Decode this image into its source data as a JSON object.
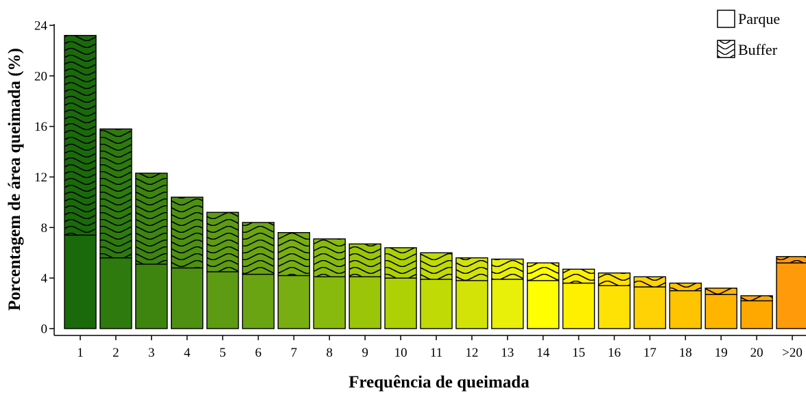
{
  "chart_data": {
    "type": "bar",
    "stacked": true,
    "xlabel": "Frequência de queimada",
    "ylabel": "Porcentagem de área queimada (%)",
    "ylim": [
      0,
      24
    ],
    "yticks": [
      0,
      4,
      8,
      12,
      16,
      20,
      24
    ],
    "categories": [
      "1",
      "2",
      "3",
      "4",
      "5",
      "6",
      "7",
      "8",
      "9",
      "10",
      "11",
      "12",
      "13",
      "14",
      "15",
      "16",
      "17",
      "18",
      "19",
      "20",
      ">20"
    ],
    "series": [
      {
        "name": "Parque",
        "pattern": "none",
        "values": [
          7.4,
          5.6,
          5.1,
          4.8,
          4.5,
          4.3,
          4.2,
          4.1,
          4.1,
          4.0,
          3.9,
          3.8,
          3.9,
          3.8,
          3.6,
          3.4,
          3.3,
          3.0,
          2.7,
          2.2,
          5.2
        ]
      },
      {
        "name": "Buffer",
        "pattern": "waves",
        "values": [
          15.8,
          10.2,
          7.2,
          5.6,
          4.7,
          4.1,
          3.4,
          3.0,
          2.6,
          2.4,
          2.1,
          1.8,
          1.6,
          1.4,
          1.1,
          1.0,
          0.8,
          0.6,
          0.5,
          0.4,
          0.5
        ]
      }
    ],
    "colors": [
      "#1a6a0b",
      "#2e7a0e",
      "#3e8510",
      "#4e9012",
      "#5d9b13",
      "#6aa413",
      "#78ae12",
      "#88ba0e",
      "#9ac509",
      "#aed105",
      "#c0da05",
      "#d3e308",
      "#e8ef08",
      "#ffff00",
      "#fff000",
      "#ffe205",
      "#ffd205",
      "#ffc400",
      "#ffb500",
      "#ffa800",
      "#ff9a0a"
    ],
    "legend": {
      "position": "top-right",
      "entries": [
        "Parque",
        "Buffer"
      ]
    },
    "grid": false
  }
}
